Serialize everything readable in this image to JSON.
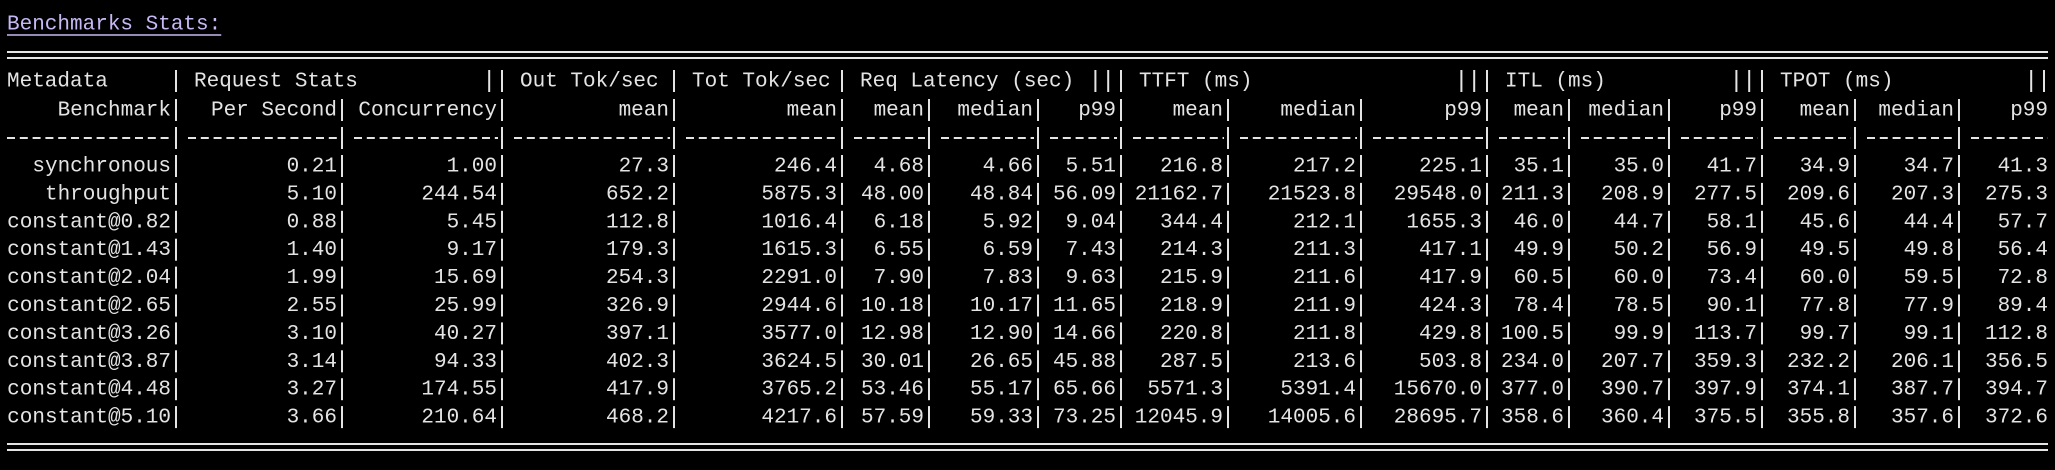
{
  "header": {
    "title": "Benchmarks Stats:"
  },
  "table": {
    "groups": [
      "Metadata",
      "Request Stats",
      "Out Tok/sec",
      "Tot Tok/sec",
      "Req Latency (sec)",
      "TTFT (ms)",
      "ITL (ms)",
      "TPOT (ms)"
    ],
    "columns": [
      "Benchmark",
      "Per Second",
      "Concurrency",
      "mean",
      "mean",
      "mean",
      "median",
      "p99",
      "mean",
      "median",
      "p99",
      "mean",
      "median",
      "p99",
      "mean",
      "median",
      "p99"
    ],
    "rows": [
      [
        "synchronous",
        "0.21",
        "1.00",
        "27.3",
        "246.4",
        "4.68",
        "4.66",
        "5.51",
        "216.8",
        "217.2",
        "225.1",
        "35.1",
        "35.0",
        "41.7",
        "34.9",
        "34.7",
        "41.3"
      ],
      [
        "throughput",
        "5.10",
        "244.54",
        "652.2",
        "5875.3",
        "48.00",
        "48.84",
        "56.09",
        "21162.7",
        "21523.8",
        "29548.0",
        "211.3",
        "208.9",
        "277.5",
        "209.6",
        "207.3",
        "275.3"
      ],
      [
        "constant@0.82",
        "0.88",
        "5.45",
        "112.8",
        "1016.4",
        "6.18",
        "5.92",
        "9.04",
        "344.4",
        "212.1",
        "1655.3",
        "46.0",
        "44.7",
        "58.1",
        "45.6",
        "44.4",
        "57.7"
      ],
      [
        "constant@1.43",
        "1.40",
        "9.17",
        "179.3",
        "1615.3",
        "6.55",
        "6.59",
        "7.43",
        "214.3",
        "211.3",
        "417.1",
        "49.9",
        "50.2",
        "56.9",
        "49.5",
        "49.8",
        "56.4"
      ],
      [
        "constant@2.04",
        "1.99",
        "15.69",
        "254.3",
        "2291.0",
        "7.90",
        "7.83",
        "9.63",
        "215.9",
        "211.6",
        "417.9",
        "60.5",
        "60.0",
        "73.4",
        "60.0",
        "59.5",
        "72.8"
      ],
      [
        "constant@2.65",
        "2.55",
        "25.99",
        "326.9",
        "2944.6",
        "10.18",
        "10.17",
        "11.65",
        "218.9",
        "211.9",
        "424.3",
        "78.4",
        "78.5",
        "90.1",
        "77.8",
        "77.9",
        "89.4"
      ],
      [
        "constant@3.26",
        "3.10",
        "40.27",
        "397.1",
        "3577.0",
        "12.98",
        "12.90",
        "14.66",
        "220.8",
        "211.8",
        "429.8",
        "100.5",
        "99.9",
        "113.7",
        "99.7",
        "99.1",
        "112.8"
      ],
      [
        "constant@3.87",
        "3.14",
        "94.33",
        "402.3",
        "3624.5",
        "30.01",
        "26.65",
        "45.88",
        "287.5",
        "213.6",
        "503.8",
        "234.0",
        "207.7",
        "359.3",
        "232.2",
        "206.1",
        "356.5"
      ],
      [
        "constant@4.48",
        "3.27",
        "174.55",
        "417.9",
        "3765.2",
        "53.46",
        "55.17",
        "65.66",
        "5571.3",
        "5391.4",
        "15670.0",
        "377.0",
        "390.7",
        "397.9",
        "374.1",
        "387.7",
        "394.7"
      ],
      [
        "constant@5.10",
        "3.66",
        "210.64",
        "468.2",
        "4217.6",
        "57.59",
        "59.33",
        "73.25",
        "12045.9",
        "14005.6",
        "28695.7",
        "358.6",
        "360.4",
        "375.5",
        "355.8",
        "357.6",
        "372.6"
      ]
    ]
  }
}
